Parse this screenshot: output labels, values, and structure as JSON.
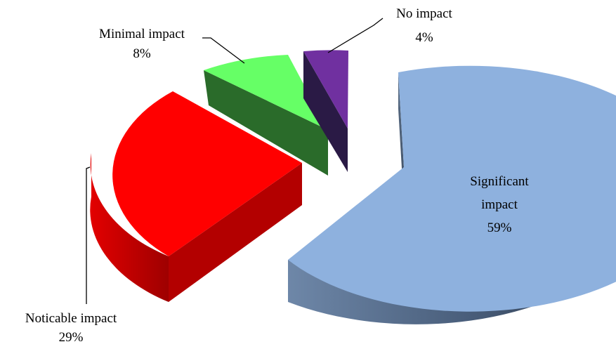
{
  "chart_data": {
    "type": "pie",
    "style": "3d-exploded",
    "title": "",
    "series": [
      {
        "name": "",
        "slices": [
          {
            "key": "significant",
            "label": "Significant impact",
            "percent_label": "59%",
            "value": 59,
            "color": "#8EB1DE",
            "label_lines": [
              "Significant",
              "impact"
            ]
          },
          {
            "key": "noticable",
            "label": "Noticable impact",
            "percent_label": "29%",
            "value": 29,
            "color": "#FF0000",
            "label_lines": [
              "Noticable impact"
            ]
          },
          {
            "key": "minimal",
            "label": "Minimal impact",
            "percent_label": "8%",
            "value": 8,
            "color": "#66FF66",
            "label_lines": [
              "Minimal impact"
            ]
          },
          {
            "key": "noimpact",
            "label": "No impact",
            "percent_label": "4%",
            "value": 4,
            "color": "#7030A0",
            "label_lines": [
              "No impact"
            ]
          }
        ]
      }
    ],
    "legend": "none"
  }
}
